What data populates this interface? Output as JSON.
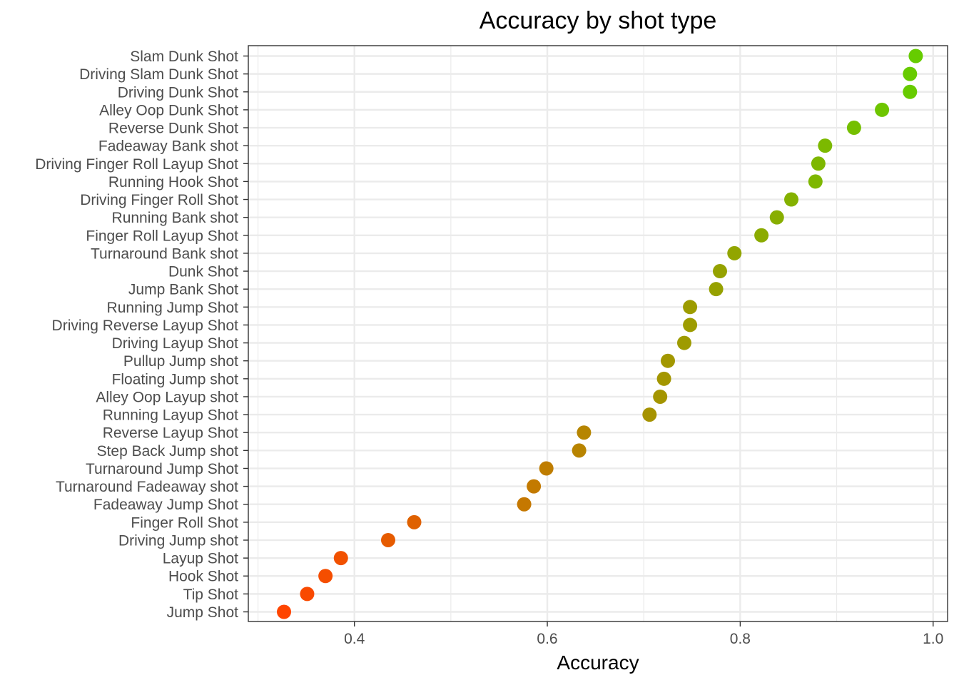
{
  "chart_data": {
    "type": "scatter",
    "title": "Accuracy by shot type",
    "xlabel": "Accuracy",
    "ylabel": "",
    "xlim": [
      0.29,
      1.015
    ],
    "x_ticks": [
      0.4,
      0.6,
      0.8,
      1.0
    ],
    "x_tick_labels": [
      "0.4",
      "0.6",
      "0.8",
      "1.0"
    ],
    "grid": true,
    "legend": "none",
    "color_low": "#FF4500",
    "color_high": "#66CC00",
    "categories": [
      "Slam Dunk Shot",
      "Driving Slam Dunk Shot",
      "Driving Dunk Shot",
      "Alley Oop Dunk Shot",
      "Reverse Dunk Shot",
      "Fadeaway Bank shot",
      "Driving Finger Roll Layup Shot",
      "Running Hook Shot",
      "Driving Finger Roll Shot",
      "Running Bank shot",
      "Finger Roll Layup Shot",
      "Turnaround Bank shot",
      "Dunk Shot",
      "Jump Bank Shot",
      "Running Jump Shot",
      "Driving Reverse Layup Shot",
      "Driving Layup Shot",
      "Pullup Jump shot",
      "Floating Jump shot",
      "Alley Oop Layup shot",
      "Running Layup Shot",
      "Reverse Layup Shot",
      "Step Back Jump shot",
      "Turnaround Jump Shot",
      "Turnaround Fadeaway shot",
      "Fadeaway Jump Shot",
      "Finger Roll Shot",
      "Driving Jump shot",
      "Layup Shot",
      "Hook Shot",
      "Tip Shot",
      "Jump Shot"
    ],
    "values": [
      0.982,
      0.976,
      0.976,
      0.947,
      0.918,
      0.888,
      0.881,
      0.878,
      0.853,
      0.838,
      0.822,
      0.794,
      0.779,
      0.775,
      0.748,
      0.748,
      0.742,
      0.725,
      0.721,
      0.717,
      0.706,
      0.638,
      0.633,
      0.599,
      0.586,
      0.576,
      0.462,
      0.435,
      0.386,
      0.37,
      0.351,
      0.327
    ]
  }
}
